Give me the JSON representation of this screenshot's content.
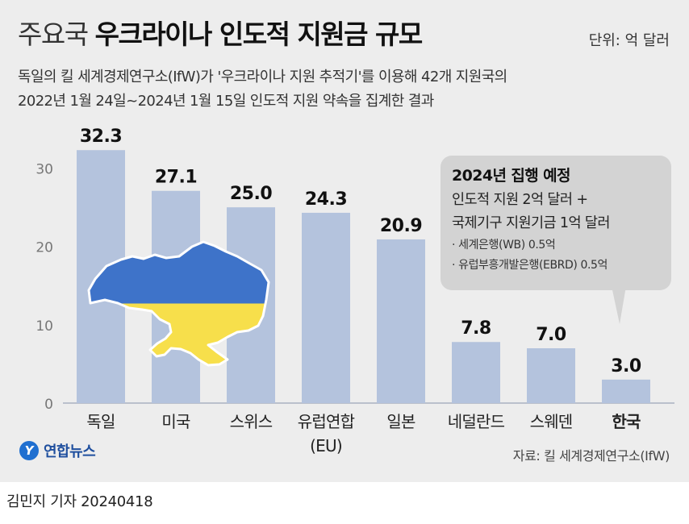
{
  "header": {
    "title_light": "주요국",
    "title_bold": "우크라이나 인도적 지원금 규모",
    "unit": "단위: 억 달러",
    "subtitle_line1": "독일의 킬 세계경제연구소(IfW)가 '우크라이나 지원 추적기'를 이용해 42개 지원국의",
    "subtitle_line2": "2022년 1월 24일~2024년 1월 15일 인도적 지원 약속을 집계한 결과"
  },
  "chart_data": {
    "type": "bar",
    "categories": [
      "독일",
      "미국",
      "스위스",
      "유럽연합\n(EU)",
      "일본",
      "네덜란드",
      "스웨덴",
      "한국"
    ],
    "values": [
      32.3,
      27.1,
      25.0,
      24.3,
      20.9,
      7.8,
      7.0,
      3.0
    ],
    "value_labels": [
      "32.3",
      "27.1",
      "25.0",
      "24.3",
      "20.9",
      "7.8",
      "7.0",
      "3.0"
    ],
    "highlight_category": "한국",
    "ylim": [
      0,
      35
    ],
    "yticks": [
      0,
      10,
      20,
      30
    ],
    "grid": false,
    "bar_color": "#b4c3dd",
    "label_color": "#111111"
  },
  "callout": {
    "title": "2024년 집행 예정",
    "line1": "인도적 지원 2억 달러 +",
    "line2": "국제기구 지원기금 1억 달러",
    "bullet1": "· 세계은행(WB) 0.5억",
    "bullet2": "· 유럽부흥개발은행(EBRD) 0.5억"
  },
  "map_colors": {
    "top": "#3e73c9",
    "bottom": "#f7df4b"
  },
  "branding": {
    "logo_mark": "Y",
    "logo_text": "연합뉴스"
  },
  "source": "자료: 킬 세계경제연구소(IfW)",
  "footer": "김민지 기자  20240418"
}
